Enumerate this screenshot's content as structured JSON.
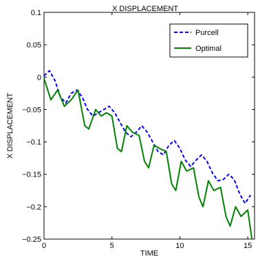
{
  "chart_data": {
    "type": "line",
    "title": "X DISPLACEMENT",
    "xlabel": "TIME",
    "ylabel": "X DISPLACEMENT",
    "xlim": [
      0,
      15.5
    ],
    "ylim": [
      -0.25,
      0.1
    ],
    "xticks": [
      0,
      5,
      10,
      15
    ],
    "xtick_labels": [
      "0",
      "5",
      "10",
      "15"
    ],
    "yticks": [
      -0.25,
      -0.2,
      -0.15,
      -0.1,
      -0.05,
      0,
      0.05,
      0.1
    ],
    "ytick_labels": [
      "−0.25",
      "−0.2",
      "−0.15",
      "−0.1",
      "−0.05",
      "0",
      "0.05",
      "0.1"
    ],
    "grid": false,
    "legend_position": "top-right",
    "series": [
      {
        "name": "Purcell",
        "color": "#0000ff",
        "style": "dashed",
        "x": [
          0,
          0.4,
          0.8,
          1.2,
          1.6,
          2.0,
          2.4,
          2.8,
          3.2,
          3.6,
          4.0,
          4.4,
          4.8,
          5.2,
          5.6,
          6.0,
          6.4,
          6.8,
          7.2,
          7.6,
          8.0,
          8.4,
          8.8,
          9.2,
          9.6,
          10.0,
          10.4,
          10.8,
          11.2,
          11.6,
          12.0,
          12.4,
          12.8,
          13.2,
          13.6,
          14.0,
          14.4,
          14.8,
          15.2
        ],
        "y": [
          0.002,
          0.01,
          -0.005,
          -0.03,
          -0.04,
          -0.025,
          -0.02,
          -0.03,
          -0.05,
          -0.06,
          -0.055,
          -0.05,
          -0.045,
          -0.055,
          -0.07,
          -0.085,
          -0.092,
          -0.085,
          -0.075,
          -0.085,
          -0.1,
          -0.115,
          -0.12,
          -0.105,
          -0.098,
          -0.11,
          -0.128,
          -0.138,
          -0.128,
          -0.12,
          -0.13,
          -0.148,
          -0.16,
          -0.158,
          -0.15,
          -0.158,
          -0.18,
          -0.195,
          -0.182
        ]
      },
      {
        "name": "Optimal",
        "color": "#008000",
        "style": "solid",
        "x": [
          0,
          0.5,
          1.0,
          1.5,
          2.0,
          2.5,
          3.0,
          3.3,
          3.8,
          4.2,
          4.6,
          5.0,
          5.4,
          5.7,
          6.1,
          6.5,
          7.0,
          7.4,
          7.7,
          8.1,
          8.5,
          9.0,
          9.4,
          9.7,
          10.1,
          10.5,
          11.0,
          11.4,
          11.7,
          12.1,
          12.5,
          13.0,
          13.4,
          13.7,
          14.1,
          14.5,
          15.0,
          15.3
        ],
        "y": [
          -0.002,
          -0.035,
          -0.02,
          -0.045,
          -0.035,
          -0.02,
          -0.075,
          -0.08,
          -0.05,
          -0.06,
          -0.055,
          -0.06,
          -0.11,
          -0.115,
          -0.075,
          -0.085,
          -0.09,
          -0.13,
          -0.14,
          -0.105,
          -0.11,
          -0.115,
          -0.165,
          -0.175,
          -0.13,
          -0.145,
          -0.14,
          -0.185,
          -0.2,
          -0.16,
          -0.175,
          -0.17,
          -0.215,
          -0.23,
          -0.2,
          -0.215,
          -0.205,
          -0.25
        ]
      }
    ]
  }
}
